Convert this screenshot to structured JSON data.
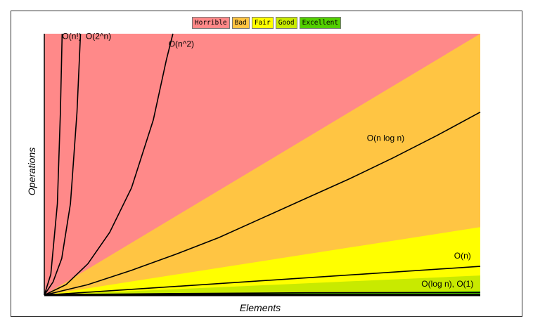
{
  "legend": [
    {
      "label": "Horrible",
      "color": "#ff8989"
    },
    {
      "label": "Bad",
      "color": "#ffc543"
    },
    {
      "label": "Fair",
      "color": "#ffff00"
    },
    {
      "label": "Good",
      "color": "#c8ea00"
    },
    {
      "label": "Excellent",
      "color": "#53d000"
    }
  ],
  "chart_data": {
    "type": "area",
    "xlabel": "Elements",
    "ylabel": "Operations",
    "xlim": [
      0,
      100
    ],
    "ylim": [
      0,
      100
    ],
    "grid": false,
    "legend_position": "top-center",
    "regions": [
      {
        "name": "Horrible",
        "upper_right_y": 100,
        "color": "#ff8989"
      },
      {
        "name": "Bad",
        "upper_right_y": 100,
        "color": "#ffc543"
      },
      {
        "name": "Fair",
        "upper_right_y": 26,
        "color": "#ffff00"
      },
      {
        "name": "Good",
        "upper_right_y": 7.5,
        "color": "#c8ea00"
      },
      {
        "name": "Excellent",
        "upper_right_y": 1.5,
        "color": "#53d000"
      }
    ],
    "series": [
      {
        "name": "O(1)",
        "points": [
          [
            0,
            0.3
          ],
          [
            100,
            0.3
          ]
        ]
      },
      {
        "name": "O(log n)",
        "points": [
          [
            0,
            0
          ],
          [
            10,
            0.3
          ],
          [
            30,
            0.6
          ],
          [
            60,
            0.9
          ],
          [
            100,
            1.0
          ]
        ]
      },
      {
        "name": "O(n)",
        "points": [
          [
            0,
            0
          ],
          [
            100,
            11
          ]
        ]
      },
      {
        "name": "O(n log n)",
        "points": [
          [
            0,
            0
          ],
          [
            10,
            4
          ],
          [
            20,
            9.5
          ],
          [
            30,
            15.5
          ],
          [
            40,
            22
          ],
          [
            50,
            29.5
          ],
          [
            60,
            37
          ],
          [
            70,
            44.5
          ],
          [
            80,
            52.5
          ],
          [
            90,
            61
          ],
          [
            100,
            70
          ]
        ]
      },
      {
        "name": "O(n^2)",
        "points": [
          [
            0,
            0
          ],
          [
            5,
            4
          ],
          [
            10,
            12
          ],
          [
            15,
            24
          ],
          [
            20,
            41
          ],
          [
            25,
            67
          ],
          [
            28,
            90
          ],
          [
            29.5,
            100
          ]
        ]
      },
      {
        "name": "O(2^n)",
        "points": [
          [
            0,
            0
          ],
          [
            2,
            5
          ],
          [
            4,
            14
          ],
          [
            6,
            35
          ],
          [
            7.5,
            70
          ],
          [
            8.3,
            100
          ]
        ]
      },
      {
        "name": "O(n!)",
        "points": [
          [
            0,
            0
          ],
          [
            1.5,
            8
          ],
          [
            3,
            35
          ],
          [
            3.7,
            70
          ],
          [
            4.1,
            100
          ]
        ]
      }
    ],
    "labels": [
      {
        "text": "O(n!)",
        "x": 4.1,
        "y": 98
      },
      {
        "text": "O(2^n)",
        "x": 9.5,
        "y": 98
      },
      {
        "text": "O(n^2)",
        "x": 28.5,
        "y": 95
      },
      {
        "text": "O(n log n)",
        "x": 74,
        "y": 59
      },
      {
        "text": "O(n)",
        "x": 94,
        "y": 14
      },
      {
        "text": "O(log n), O(1)",
        "x": 86.5,
        "y": 3.2
      }
    ]
  }
}
